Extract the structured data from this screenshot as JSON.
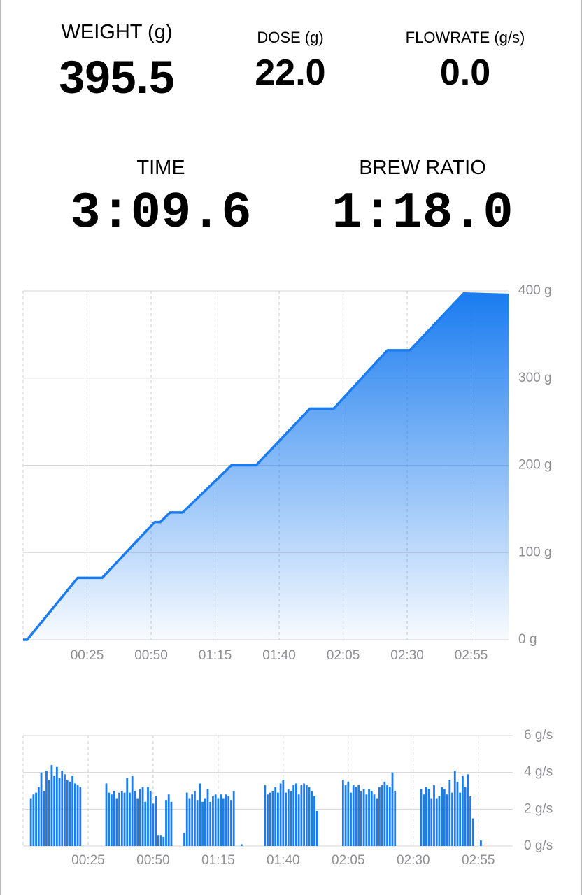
{
  "stats": [
    {
      "label": "WEIGHT (g)",
      "value": "395.5"
    },
    {
      "label": "DOSE (g)",
      "value": "22.0"
    },
    {
      "label": "FLOWRATE (g/s)",
      "value": "0.0"
    },
    {
      "label": "TIME",
      "value": "3:09.6"
    },
    {
      "label": "BREW RATIO",
      "value": "1:18.0"
    }
  ],
  "chart_data": [
    {
      "type": "area",
      "color": "#1a7cf0",
      "grid": true,
      "x": [
        0,
        1.6,
        21.3,
        30.9,
        51.4,
        53.6,
        57.4,
        62.3,
        81.4,
        91,
        112,
        121.3,
        142.3,
        151.1,
        172.1,
        189.6
      ],
      "values": [
        0,
        0,
        71,
        71,
        135,
        135,
        146,
        146,
        200,
        200,
        265,
        265,
        332,
        332,
        397,
        395.5
      ],
      "xlim": [
        0,
        189.6
      ],
      "xticks": [
        {
          "value": 25,
          "label": "00:25"
        },
        {
          "value": 50,
          "label": "00:50"
        },
        {
          "value": 75,
          "label": "01:15"
        },
        {
          "value": 100,
          "label": "01:40"
        },
        {
          "value": 125,
          "label": "02:05"
        },
        {
          "value": 150,
          "label": "02:30"
        },
        {
          "value": 175,
          "label": "02:55"
        }
      ],
      "ylim": [
        0,
        400
      ],
      "yticks": [
        {
          "value": 0,
          "label": "0 g"
        },
        {
          "value": 100,
          "label": "100 g"
        },
        {
          "value": 200,
          "label": "200 g"
        },
        {
          "value": 300,
          "label": "300 g"
        },
        {
          "value": 400,
          "label": "400 g"
        }
      ]
    },
    {
      "type": "bar",
      "color": "#1a7cf0",
      "grid": true,
      "x": [
        3,
        4,
        5,
        6,
        7,
        8,
        9,
        10,
        11,
        12,
        13,
        14,
        15,
        16,
        17,
        18,
        19,
        20,
        21,
        22,
        32,
        33,
        34,
        35,
        36,
        37,
        38,
        39,
        40,
        41,
        42,
        43,
        44,
        45,
        46,
        47,
        48,
        49,
        50,
        51,
        52,
        53,
        54,
        55,
        56,
        57,
        62,
        63,
        64,
        65,
        66,
        67,
        68,
        69,
        70,
        71,
        72,
        73,
        74,
        75,
        76,
        77,
        78,
        79,
        80,
        81,
        84,
        93,
        94,
        95,
        96,
        97,
        98,
        99,
        100,
        101,
        102,
        103,
        104,
        105,
        106,
        107,
        108,
        109,
        110,
        111,
        112,
        113,
        123,
        124,
        125,
        126,
        127,
        128,
        129,
        130,
        131,
        132,
        133,
        134,
        135,
        136,
        137,
        138,
        139,
        140,
        141,
        142,
        143,
        153,
        154,
        155,
        156,
        157,
        158,
        159,
        160,
        161,
        162,
        163,
        164,
        165,
        166,
        167,
        168,
        169,
        170,
        171,
        172,
        173,
        176
      ],
      "values": [
        2.6,
        2.8,
        2.9,
        3.2,
        4.0,
        3.0,
        4.1,
        3.6,
        4.4,
        3.8,
        4.3,
        3.7,
        4.1,
        3.9,
        3.6,
        3.5,
        3.8,
        3.4,
        3.3,
        3.2,
        3.4,
        2.9,
        2.8,
        3.0,
        2.6,
        2.9,
        3.0,
        2.9,
        3.7,
        2.9,
        3.8,
        3.0,
        2.6,
        3.1,
        3.2,
        2.4,
        3.2,
        3.0,
        2.3,
        2.7,
        0.6,
        0.6,
        0.5,
        2.5,
        2.8,
        2.4,
        0.7,
        2.9,
        2.6,
        2.8,
        3.0,
        2.5,
        3.4,
        2.4,
        2.6,
        3.1,
        2.4,
        2.7,
        2.8,
        2.6,
        2.8,
        2.6,
        2.8,
        2.7,
        2.5,
        3.0,
        0.1,
        3.3,
        2.8,
        2.9,
        3.0,
        3.2,
        2.9,
        3.4,
        3.6,
        2.9,
        3.1,
        3.0,
        3.3,
        3.4,
        2.8,
        3.3,
        3.4,
        3.3,
        3.2,
        3.0,
        2.7,
        1.9,
        3.6,
        3.3,
        3.5,
        2.9,
        3.3,
        3.2,
        3.3,
        3.0,
        3.1,
        2.8,
        3.1,
        3.0,
        2.8,
        2.6,
        3.2,
        3.3,
        3.5,
        3.3,
        3.2,
        4.0,
        3.0,
        3.1,
        2.8,
        3.2,
        3.1,
        2.6,
        3.3,
        2.6,
        2.7,
        3.2,
        3.1,
        2.8,
        3.6,
        2.9,
        4.1,
        3.5,
        2.9,
        3.8,
        3.2,
        3.9,
        2.7,
        1.5,
        0.3
      ],
      "xlim": [
        0,
        189.6
      ],
      "xticks": [
        {
          "value": 25,
          "label": "00:25"
        },
        {
          "value": 50,
          "label": "00:50"
        },
        {
          "value": 75,
          "label": "01:15"
        },
        {
          "value": 100,
          "label": "01:40"
        },
        {
          "value": 125,
          "label": "02:05"
        },
        {
          "value": 150,
          "label": "02:30"
        },
        {
          "value": 175,
          "label": "02:55"
        }
      ],
      "ylim": [
        0,
        6
      ],
      "yticks": [
        {
          "value": 0,
          "label": "0 g/s"
        },
        {
          "value": 2,
          "label": "2 g/s"
        },
        {
          "value": 4,
          "label": "4 g/s"
        },
        {
          "value": 6,
          "label": "6 g/s"
        }
      ]
    }
  ]
}
